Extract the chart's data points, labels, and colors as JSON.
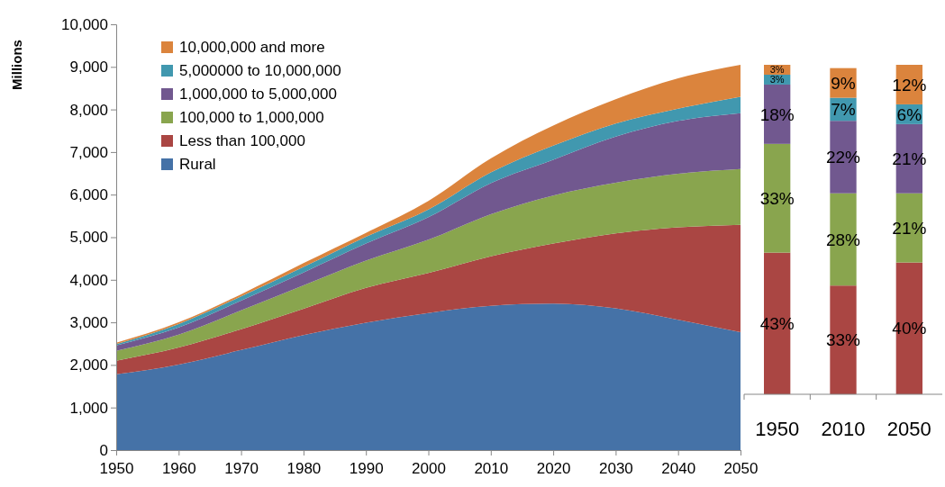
{
  "chart_data": [
    {
      "type": "area",
      "stacked": true,
      "ylabel": "Millions",
      "legend": "top left",
      "x": [
        1950,
        1960,
        1970,
        1980,
        1990,
        2000,
        2010,
        2020,
        2030,
        2040,
        2050
      ],
      "xlim": [
        1950,
        2050
      ],
      "xticks": [
        1950,
        1960,
        1970,
        1980,
        1990,
        2000,
        2010,
        2020,
        2030,
        2040,
        2050
      ],
      "ylim": [
        0,
        10000
      ],
      "yticks": [
        0,
        {
          "value": 1000,
          "label": "1,000"
        },
        {
          "value": 2000,
          "label": "2,000"
        },
        {
          "value": 3000,
          "label": "3,000"
        },
        {
          "value": 4000,
          "label": "4,000"
        },
        {
          "value": 5000,
          "label": "5,000"
        },
        {
          "value": 6000,
          "label": "6,000"
        },
        {
          "value": 7000,
          "label": "7,000"
        },
        {
          "value": 8000,
          "label": "8,000"
        },
        {
          "value": 9000,
          "label": "9,000"
        },
        {
          "value": 10000,
          "label": "10,000"
        }
      ],
      "series": [
        {
          "name": "Rural",
          "color": "#4572a7",
          "values": [
            1780,
            2010,
            2350,
            2700,
            2990,
            3220,
            3390,
            3440,
            3330,
            3060,
            2770
          ]
        },
        {
          "name": "Less than 100,000",
          "color": "#aa4643",
          "values": [
            320,
            400,
            490,
            620,
            820,
            940,
            1160,
            1410,
            1760,
            2170,
            2520
          ]
        },
        {
          "name": "100,000 to 1,000,000",
          "color": "#89a54e",
          "values": [
            230,
            300,
            440,
            550,
            640,
            780,
            990,
            1130,
            1190,
            1260,
            1310
          ]
        },
        {
          "name": "1,000,000 to 5,000,000",
          "color": "#71588f",
          "values": [
            130,
            170,
            230,
            300,
            400,
            530,
            730,
            840,
            1080,
            1240,
            1310
          ]
        },
        {
          "name": "5,000000 to 10,000,000",
          "color": "#4198af",
          "values": [
            30,
            80,
            100,
            130,
            160,
            180,
            250,
            330,
            310,
            290,
            390
          ]
        },
        {
          "name": "10,000,000 and more",
          "color": "#db843d",
          "values": [
            30,
            40,
            50,
            90,
            90,
            200,
            330,
            470,
            570,
            710,
            750
          ]
        }
      ]
    },
    {
      "type": "bar",
      "stacked": true,
      "categories": [
        "1950",
        "2010",
        "2050"
      ],
      "series": [
        {
          "color": "#aa4643",
          "values": [
            43,
            33,
            40
          ],
          "value_labels": [
            "43%",
            "33%",
            "40%"
          ]
        },
        {
          "color": "#89a54e",
          "values": [
            33,
            28,
            21
          ],
          "value_labels": [
            "33%",
            "28%",
            "21%"
          ]
        },
        {
          "color": "#71588f",
          "values": [
            18,
            22,
            21
          ],
          "value_labels": [
            "18%",
            "22%",
            "21%"
          ]
        },
        {
          "color": "#4198af",
          "values": [
            3,
            7,
            6
          ],
          "value_labels": [
            "3%",
            "7%",
            "6%"
          ]
        },
        {
          "color": "#db843d",
          "values": [
            3,
            9,
            12
          ],
          "value_labels": [
            "3%",
            "9%",
            "12%"
          ]
        }
      ]
    }
  ]
}
